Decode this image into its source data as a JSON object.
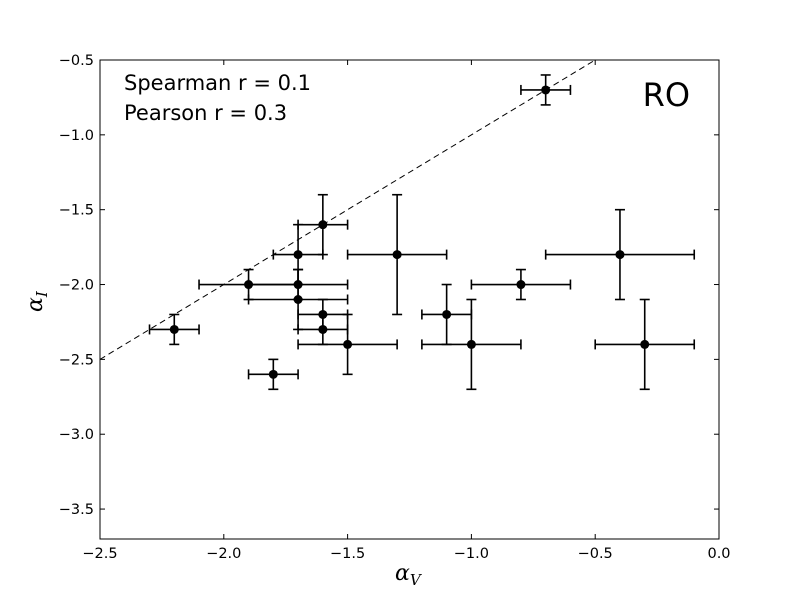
{
  "chart_data": {
    "type": "scatter",
    "xlabel": "α",
    "xlabel_sub": "V",
    "ylabel": "α",
    "ylabel_sub": "I",
    "xlim": [
      -2.5,
      0.0
    ],
    "ylim": [
      -3.7,
      -0.5
    ],
    "xticks": [
      -2.5,
      -2.0,
      -1.5,
      -1.0,
      -0.5,
      0.0
    ],
    "yticks": [
      -0.5,
      -1.0,
      -1.5,
      -2.0,
      -2.5,
      -3.0,
      -3.5
    ],
    "xtick_labels": [
      "−2.5",
      "−2.0",
      "−1.5",
      "−1.0",
      "−0.5",
      "0.0"
    ],
    "ytick_labels": [
      "−0.5",
      "−1.0",
      "−1.5",
      "−2.0",
      "−2.5",
      "−3.0",
      "−3.5"
    ],
    "annotations": [
      "Spearman r = 0.1",
      "Pearson r = 0.3"
    ],
    "panel_label": "RO",
    "reference_line": {
      "style": "dashed",
      "from": [
        -2.5,
        -2.5
      ],
      "to": [
        -0.5,
        -0.5
      ]
    },
    "points": [
      {
        "x": -0.7,
        "y": -0.7,
        "xerr": 0.1,
        "yerr": 0.1
      },
      {
        "x": -1.6,
        "y": -1.6,
        "xerr": 0.1,
        "yerr": 0.2
      },
      {
        "x": -1.3,
        "y": -1.8,
        "xerr": 0.2,
        "yerr": 0.4
      },
      {
        "x": -1.7,
        "y": -1.8,
        "xerr": 0.1,
        "yerr": 0.2
      },
      {
        "x": -0.4,
        "y": -1.8,
        "xerr": 0.3,
        "yerr": 0.3
      },
      {
        "x": -1.9,
        "y": -2.0,
        "xerr": 0.2,
        "yerr": 0.1
      },
      {
        "x": -1.7,
        "y": -2.0,
        "xerr": 0.2,
        "yerr": 0.1
      },
      {
        "x": -0.8,
        "y": -2.0,
        "xerr": 0.2,
        "yerr": 0.1
      },
      {
        "x": -1.7,
        "y": -2.1,
        "xerr": 0.2,
        "yerr": 0.2
      },
      {
        "x": -1.1,
        "y": -2.2,
        "xerr": 0.1,
        "yerr": 0.2
      },
      {
        "x": -1.6,
        "y": -2.2,
        "xerr": 0.1,
        "yerr": 0.1
      },
      {
        "x": -1.6,
        "y": -2.3,
        "xerr": 0.1,
        "yerr": 0.1
      },
      {
        "x": -2.2,
        "y": -2.3,
        "xerr": 0.1,
        "yerr": 0.1
      },
      {
        "x": -1.5,
        "y": -2.4,
        "xerr": 0.2,
        "yerr": 0.2
      },
      {
        "x": -1.0,
        "y": -2.4,
        "xerr": 0.2,
        "yerr": 0.3
      },
      {
        "x": -0.3,
        "y": -2.4,
        "xerr": 0.2,
        "yerr": 0.3
      },
      {
        "x": -1.8,
        "y": -2.6,
        "xerr": 0.1,
        "yerr": 0.1
      }
    ]
  }
}
